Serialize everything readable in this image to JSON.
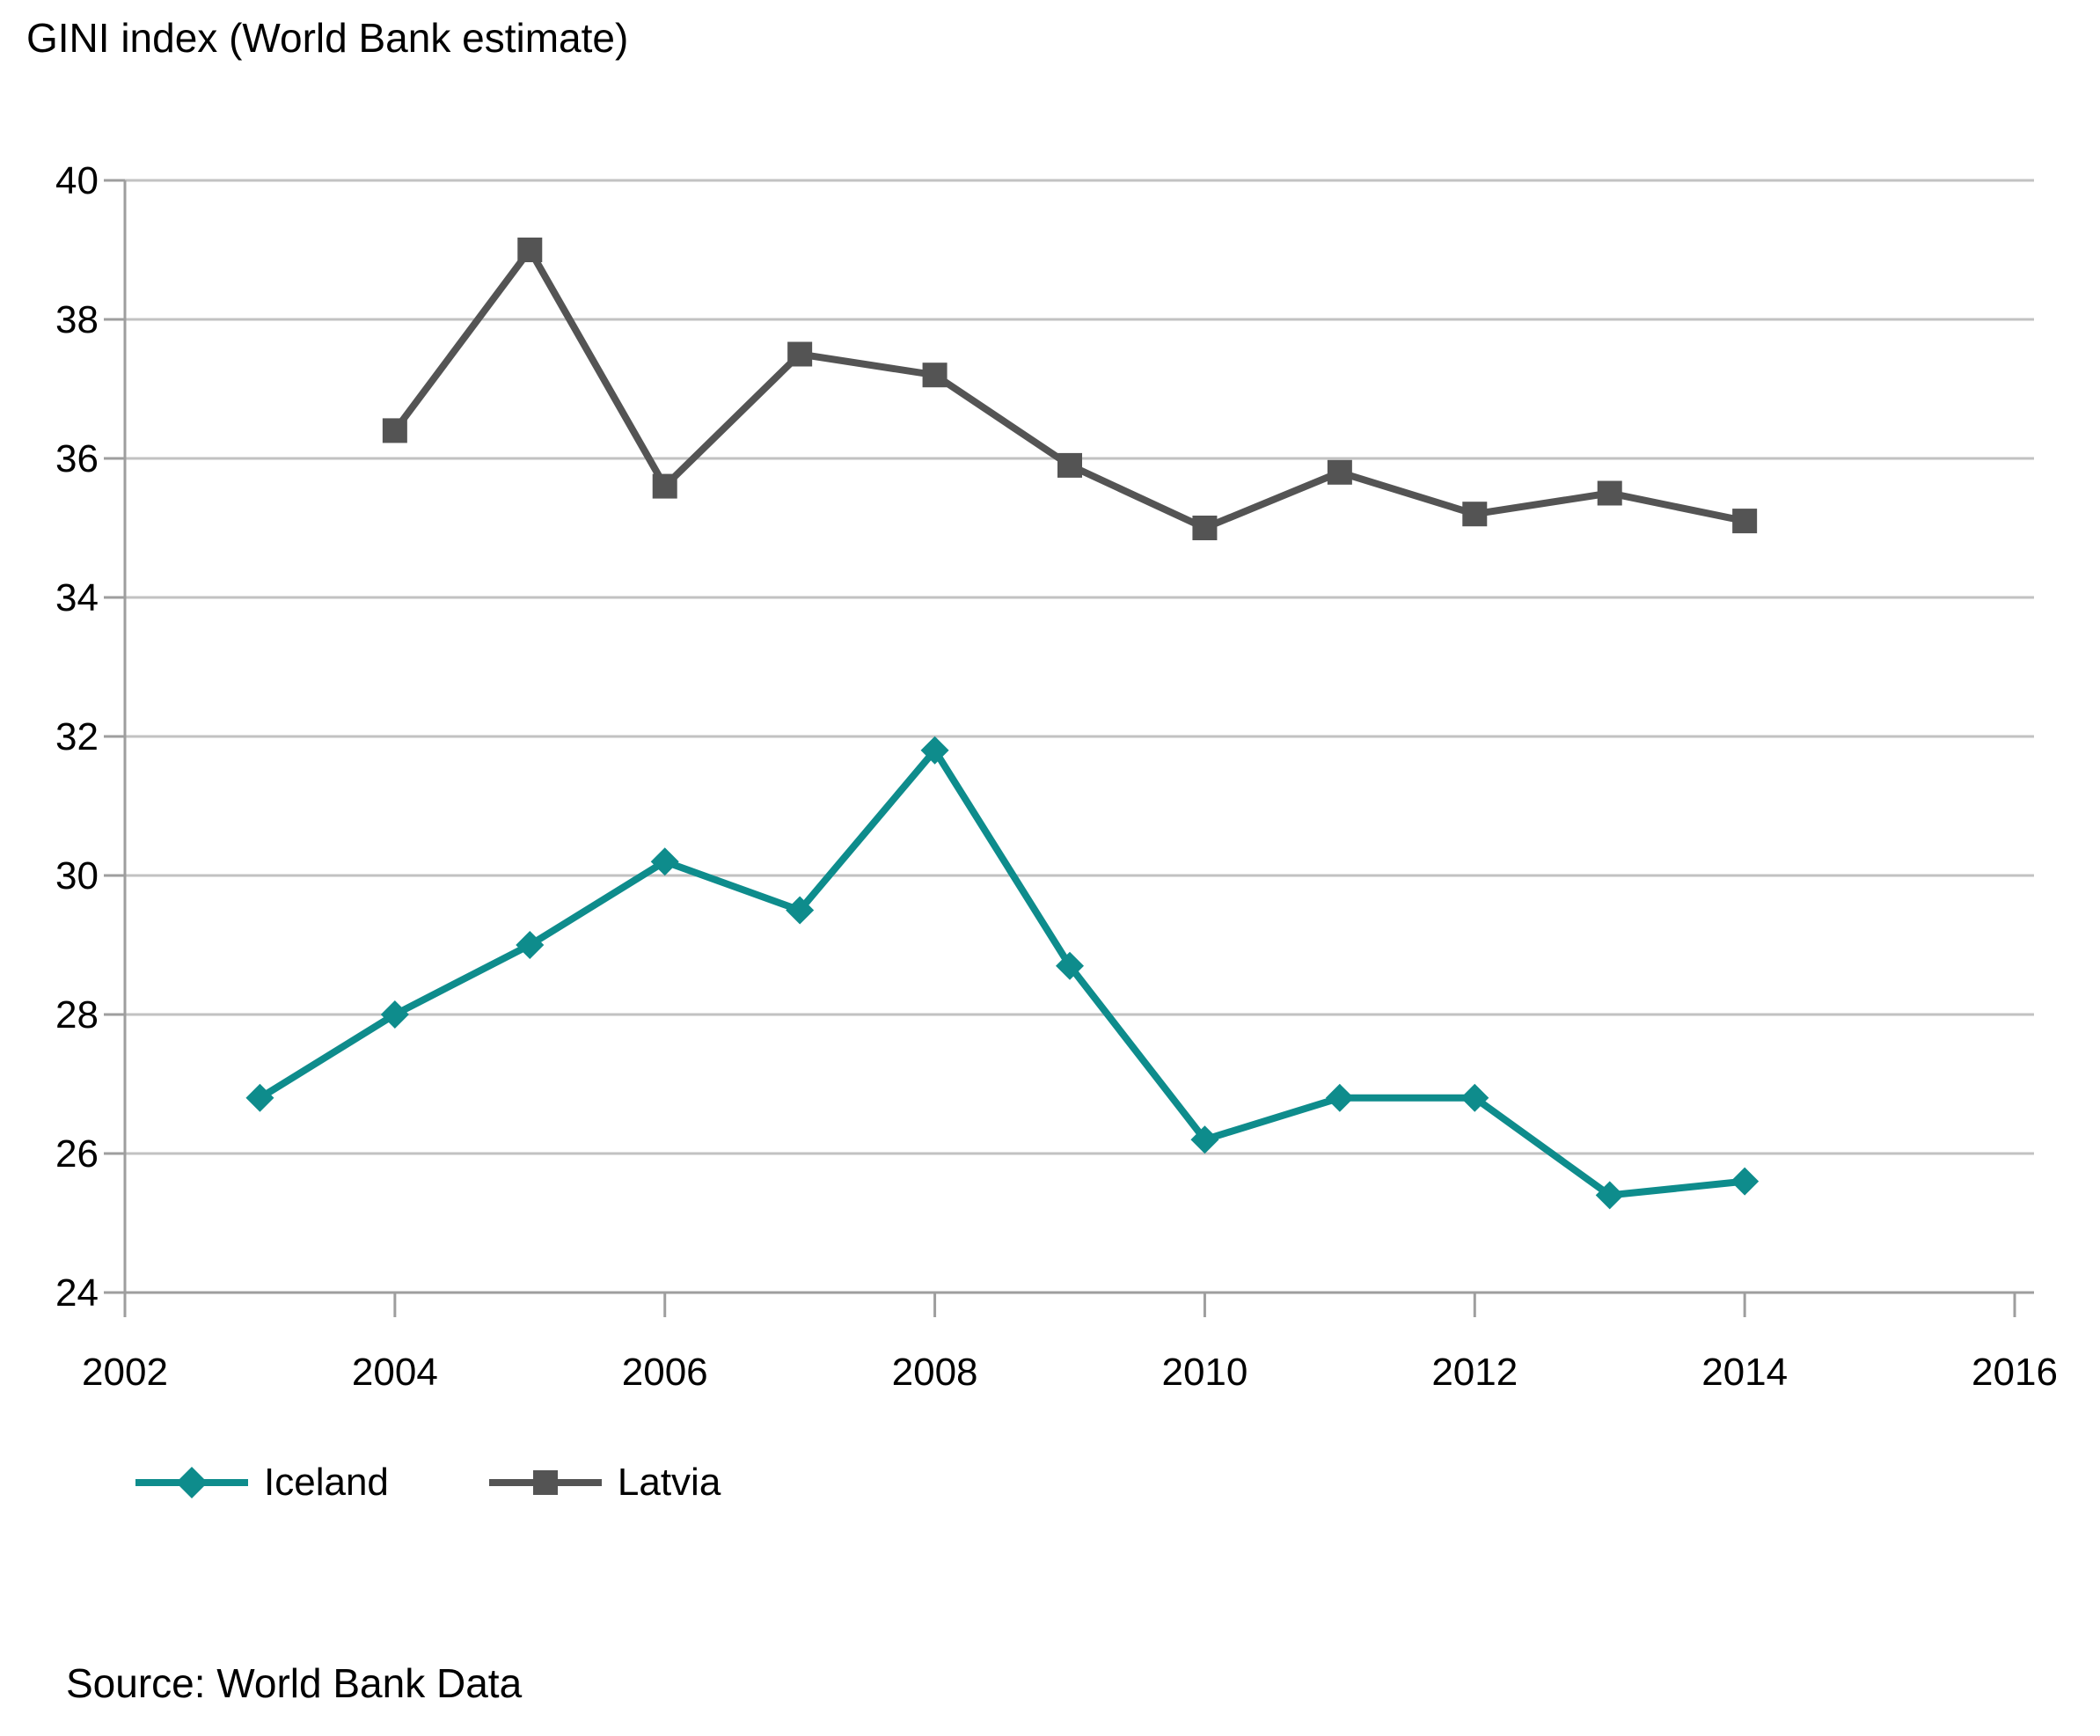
{
  "title": "GINI index (World Bank estimate)",
  "source": "Source: World Bank Data",
  "colors": {
    "iceland": "#0E8C8C",
    "latvia": "#545454",
    "gridline": "#C2C2C2",
    "axis": "#9E9E9E",
    "text": "#000000"
  },
  "chart_data": {
    "type": "line",
    "title": "GINI index (World Bank estimate)",
    "xlabel": "",
    "ylabel": "",
    "xlim": [
      2002,
      2016
    ],
    "ylim": [
      24,
      40
    ],
    "x_ticks": [
      2002,
      2004,
      2006,
      2008,
      2010,
      2012,
      2014,
      2016
    ],
    "y_ticks": [
      24,
      26,
      28,
      30,
      32,
      34,
      36,
      38,
      40
    ],
    "grid": true,
    "legend_position": "bottom-left",
    "series": [
      {
        "name": "Iceland",
        "color": "#0E8C8C",
        "marker": "diamond",
        "x": [
          2003,
          2004,
          2005,
          2006,
          2007,
          2008,
          2009,
          2010,
          2011,
          2012,
          2013,
          2014
        ],
        "values": [
          26.8,
          28.0,
          29.0,
          30.2,
          29.5,
          31.8,
          28.7,
          26.2,
          26.8,
          26.8,
          25.4,
          25.6
        ]
      },
      {
        "name": "Latvia",
        "color": "#545454",
        "marker": "square",
        "x": [
          2004,
          2005,
          2006,
          2007,
          2008,
          2009,
          2010,
          2011,
          2012,
          2013,
          2014
        ],
        "values": [
          36.4,
          39.0,
          35.6,
          37.5,
          37.2,
          35.9,
          35.0,
          35.8,
          35.2,
          35.5,
          35.1
        ]
      }
    ]
  }
}
